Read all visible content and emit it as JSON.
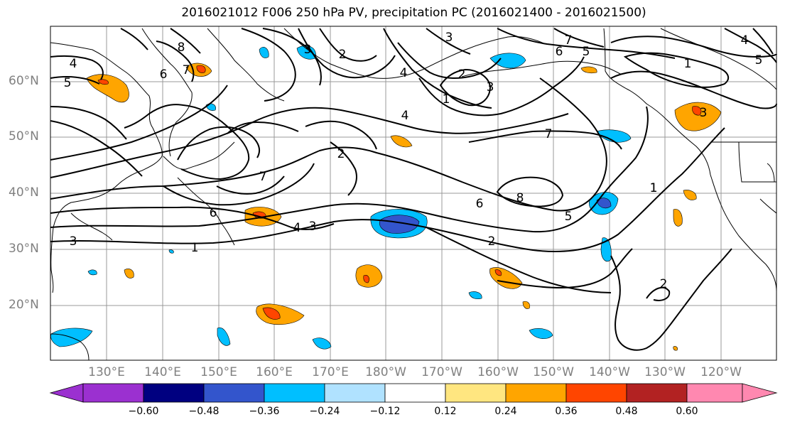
{
  "title": "2016021012 F006 250 hPa PV, precipitation PC (2016021400 - 2016021500)",
  "lat_labels": [
    "60°N",
    "50°N",
    "40°N",
    "30°N",
    "20°N"
  ],
  "lon_labels": [
    "130°E",
    "140°E",
    "150°E",
    "160°E",
    "170°E",
    "180°W",
    "170°W",
    "160°W",
    "150°W",
    "140°W",
    "130°W",
    "120°W"
  ],
  "colorbar": {
    "ticks": [
      "−0.60",
      "−0.48",
      "−0.36",
      "−0.24",
      "−0.12",
      "0.12",
      "0.24",
      "0.36",
      "0.48",
      "0.60"
    ],
    "colors": [
      "#9b30d0",
      "#000080",
      "#3355cc",
      "#00bfff",
      "#b0e2ff",
      "#ffffff",
      "#ffe680",
      "#ffa500",
      "#ff4500",
      "#b22222",
      "#ff88b0"
    ]
  },
  "contour_labels": [
    "4",
    "5",
    "6",
    "7",
    "8",
    "2",
    "3",
    "3",
    "7",
    "6",
    "5",
    "4",
    "1",
    "5",
    "4",
    "1",
    "3",
    "2",
    "4",
    "3",
    "1",
    "2",
    "7",
    "7",
    "6",
    "4",
    "3",
    "1",
    "2",
    "8",
    "6",
    "5",
    "1",
    "2",
    "3"
  ]
}
